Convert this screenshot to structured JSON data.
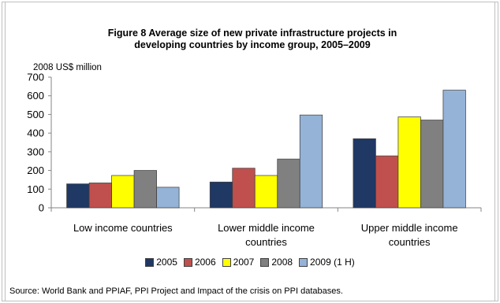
{
  "chart_data": {
    "type": "bar",
    "title_lines": [
      "Figure 8 Average size of new private infrastructure projects in",
      "developing countries by income group, 2005–2009"
    ],
    "ylabel": "2008 US$ million",
    "xlabel": "",
    "ylim": [
      0,
      700
    ],
    "yticks": [
      0,
      100,
      200,
      300,
      400,
      500,
      600,
      700
    ],
    "grid": false,
    "legend_position": "bottom",
    "categories": [
      [
        "Low income countries"
      ],
      [
        "Lower middle income",
        "countries"
      ],
      [
        "Upper middle income",
        "countries"
      ]
    ],
    "series": [
      {
        "name": "2005",
        "color": "#1f3864",
        "values": [
          128,
          138,
          370
        ]
      },
      {
        "name": "2006",
        "color": "#c0504d",
        "values": [
          133,
          212,
          278
        ]
      },
      {
        "name": "2007",
        "color": "#ffff00",
        "values": [
          173,
          173,
          487
        ]
      },
      {
        "name": "2008",
        "color": "#808080",
        "values": [
          200,
          261,
          470
        ]
      },
      {
        "name": "2009 (1 H)",
        "color": "#95b3d7",
        "values": [
          110,
          497,
          630
        ]
      }
    ]
  },
  "source_text": "Source:  World Bank and PPIAF, PPI Project  and Impact of the crisis on PPI databases."
}
